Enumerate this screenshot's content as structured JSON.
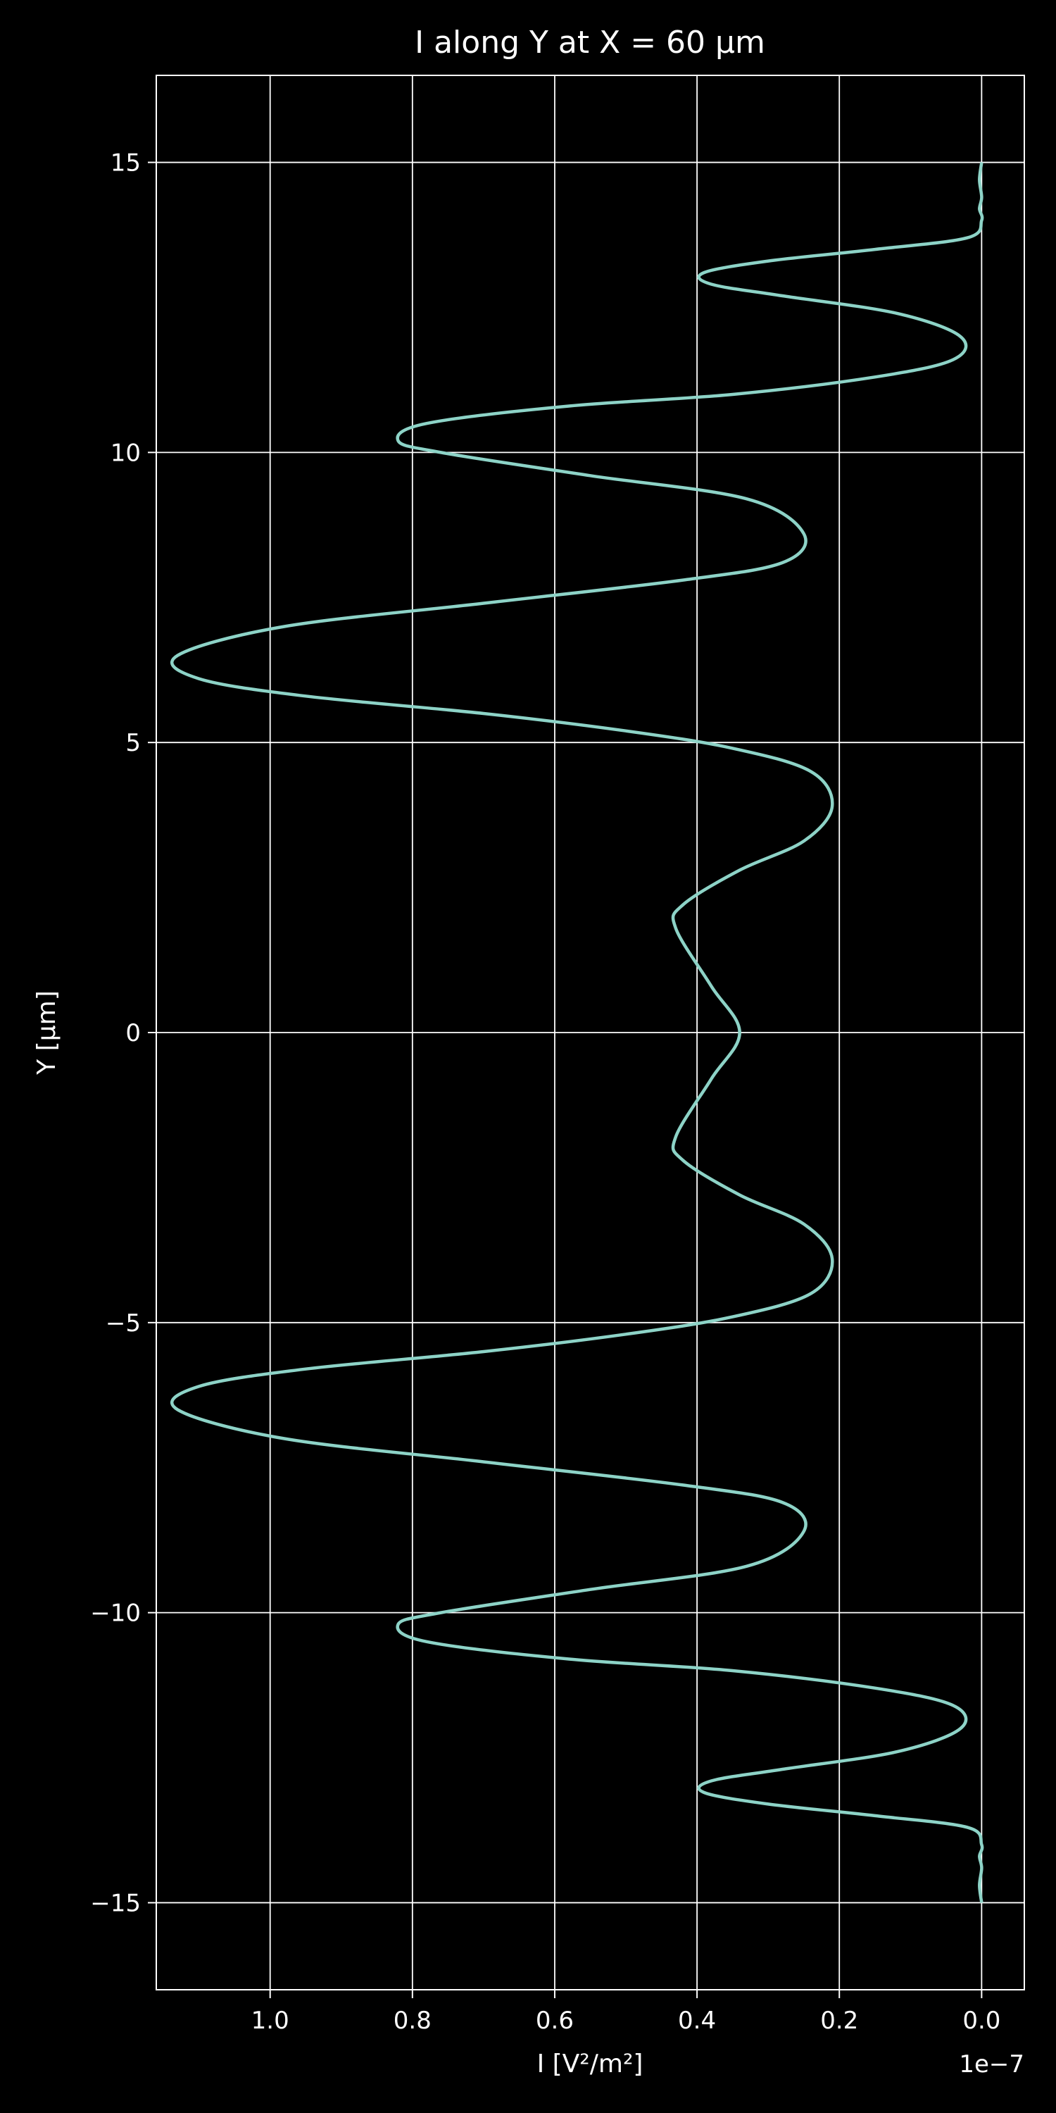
{
  "chart_data": {
    "type": "line",
    "title": "I along Y at X = 60 µm",
    "xlabel": "I [V²/m²]",
    "ylabel": "Y [µm]",
    "x_offset_text": "1e−7",
    "x_axis_inverted": true,
    "x_units_multiplier": 1e-07,
    "xlim": [
      1.16,
      -0.06
    ],
    "ylim": [
      -16.5,
      16.5
    ],
    "grid": true,
    "x_ticks": [
      1.0,
      0.8,
      0.6,
      0.4,
      0.2,
      0.0
    ],
    "x_tick_labels": [
      "1.0",
      "0.8",
      "0.6",
      "0.4",
      "0.2",
      "0.0"
    ],
    "y_ticks": [
      15,
      10,
      5,
      0,
      -5,
      -10,
      -15
    ],
    "y_tick_labels": [
      "15",
      "10",
      "5",
      "0",
      "−5",
      "−10",
      "−15"
    ],
    "line_color": "#8dd3c7",
    "background_color": "#000000",
    "series": [
      {
        "x": [
          0.0,
          0.003,
          0.0,
          0.003,
          0.0,
          0.02,
          0.15,
          0.3,
          0.39,
          0.38,
          0.28,
          0.12,
          0.03,
          0.04,
          0.15,
          0.35,
          0.58,
          0.78,
          0.82,
          0.76,
          0.55,
          0.33,
          0.25,
          0.28,
          0.42,
          0.7,
          0.98,
          1.13,
          1.1,
          0.95,
          0.7,
          0.5,
          0.35,
          0.24,
          0.21,
          0.25,
          0.34,
          0.42,
          0.43,
          0.38,
          0.34,
          0.38,
          0.43,
          0.42,
          0.34,
          0.25,
          0.21,
          0.24,
          0.35,
          0.5,
          0.7,
          0.95,
          1.1,
          1.13,
          0.98,
          0.7,
          0.42,
          0.28,
          0.25,
          0.33,
          0.55,
          0.76,
          0.82,
          0.78,
          0.58,
          0.35,
          0.15,
          0.04,
          0.03,
          0.12,
          0.28,
          0.38,
          0.39,
          0.3,
          0.15,
          0.02,
          0.0,
          0.003,
          0.0,
          0.003,
          0.0
        ],
        "y": [
          15.0,
          14.7,
          14.4,
          14.2,
          14.0,
          13.7,
          13.5,
          13.3,
          13.1,
          12.9,
          12.7,
          12.4,
          12.0,
          11.6,
          11.3,
          11.0,
          10.8,
          10.5,
          10.2,
          10.0,
          9.6,
          9.2,
          8.6,
          8.1,
          7.8,
          7.4,
          7.0,
          6.5,
          6.1,
          5.8,
          5.5,
          5.2,
          4.9,
          4.5,
          3.9,
          3.3,
          2.8,
          2.2,
          1.8,
          0.8,
          0.0,
          -0.8,
          -1.8,
          -2.2,
          -2.8,
          -3.3,
          -3.9,
          -4.5,
          -4.9,
          -5.2,
          -5.5,
          -5.8,
          -6.1,
          -6.5,
          -7.0,
          -7.4,
          -7.8,
          -8.1,
          -8.6,
          -9.2,
          -9.6,
          -10.0,
          -10.2,
          -10.5,
          -10.8,
          -11.0,
          -11.3,
          -11.6,
          -12.0,
          -12.4,
          -12.7,
          -12.9,
          -13.1,
          -13.3,
          -13.5,
          -13.7,
          -14.0,
          -14.2,
          -14.4,
          -14.7,
          -15.0
        ]
      }
    ]
  }
}
